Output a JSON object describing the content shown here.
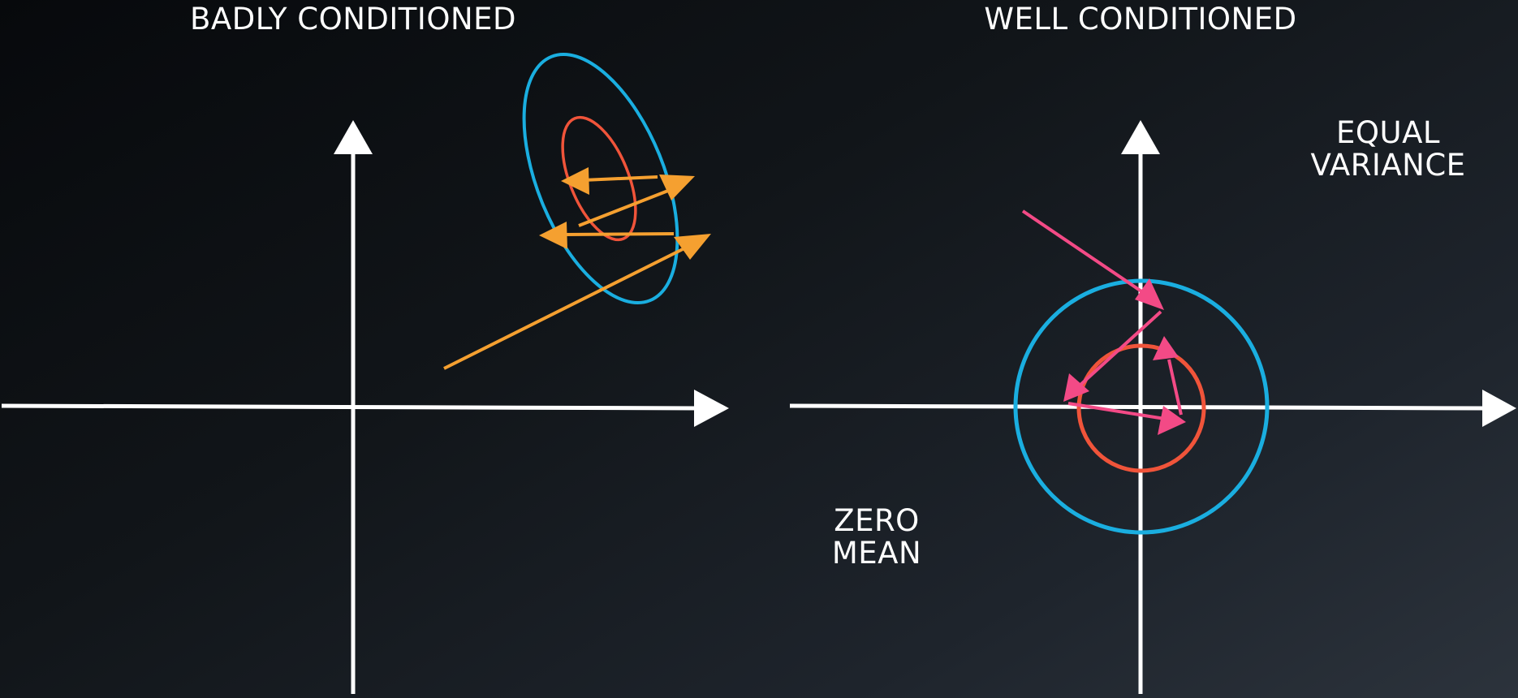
{
  "panels": {
    "left": {
      "title": "BADLY CONDITIONED"
    },
    "right": {
      "title": "WELL CONDITIONED",
      "annotation_variance": [
        "EQUAL",
        "VARIANCE"
      ],
      "annotation_mean": [
        "ZERO",
        "MEAN"
      ]
    }
  },
  "colors": {
    "axis": "#ffffff",
    "outer_contour": "#1aaee0",
    "inner_contour": "#f0543a",
    "orange_steps": "#f5a030",
    "pink_steps": "#f34a86"
  },
  "icons": {
    "arrowhead": "filled-triangle"
  }
}
